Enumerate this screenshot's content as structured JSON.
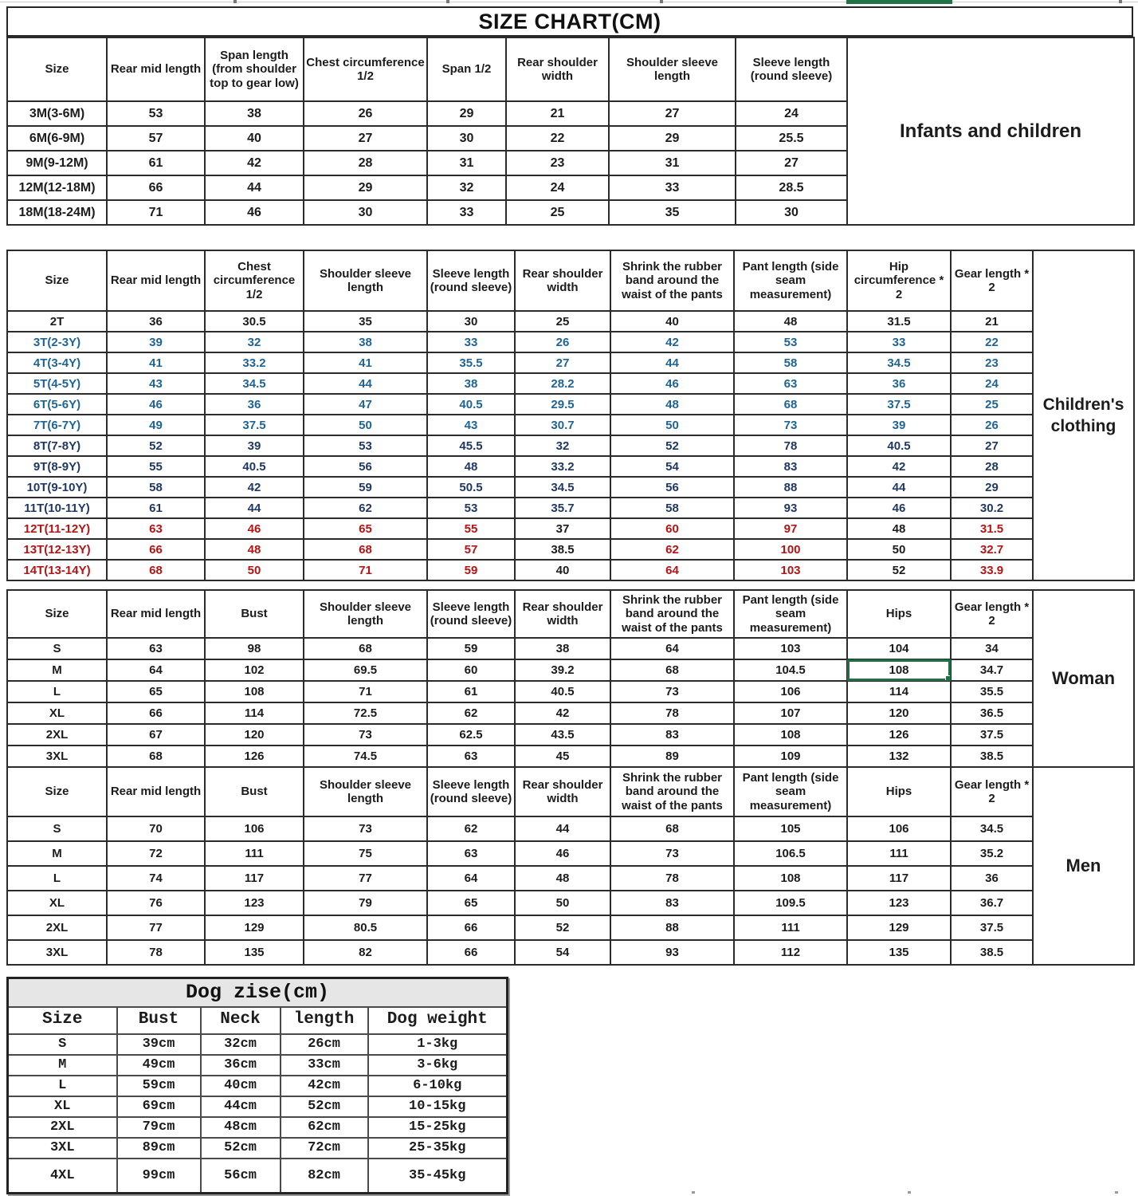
{
  "title": "SIZE CHART(CM)",
  "colors": {
    "black_text": "#1c1c1c",
    "blue_text": "#1f6494",
    "navy_text": "#1f3864",
    "red_text": "#b41414",
    "label_red": "#cb1111",
    "selection_green": "#217346",
    "dog_header_bg": "#e6e6e6"
  },
  "tables": [
    {
      "id": "t1",
      "label": "Infants and children",
      "header": [
        "Size",
        "Rear mid length",
        "Span length (from shoulder top to gear low)",
        "Chest circumference 1/2",
        "Span 1/2",
        "Rear shoulder width",
        "Shoulder sleeve length",
        "Sleeve length (round sleeve)"
      ],
      "rows": [
        [
          "3M(3-6M)",
          "53",
          "38",
          "26",
          "29",
          "21",
          "27",
          "24"
        ],
        [
          "6M(6-9M)",
          "57",
          "40",
          "27",
          "30",
          "22",
          "29",
          "25.5"
        ],
        [
          "9M(9-12M)",
          "61",
          "42",
          "28",
          "31",
          "23",
          "31",
          "27"
        ],
        [
          "12M(12-18M)",
          "66",
          "44",
          "29",
          "32",
          "24",
          "33",
          "28.5"
        ],
        [
          "18M(18-24M)",
          "71",
          "46",
          "30",
          "33",
          "25",
          "35",
          "30"
        ]
      ]
    },
    {
      "id": "t2",
      "label": "Children's clothing",
      "header": [
        "Size",
        "Rear mid length",
        "Chest circumference 1/2",
        "Shoulder sleeve length",
        "Sleeve length (round sleeve)",
        "Rear shoulder width",
        "Shrink the rubber band around the waist of the pants",
        "Pant length (side seam measurement)",
        "Hip circumference * 2",
        "Gear length * 2"
      ],
      "row_colors": [
        "k",
        "b",
        "b",
        "b",
        "b",
        "b",
        "n",
        "n",
        "n",
        "n",
        "r",
        "r",
        "r"
      ],
      "black_cols_in_red_rows": [
        5,
        8
      ],
      "rows": [
        [
          "2T",
          "36",
          "30.5",
          "35",
          "30",
          "25",
          "40",
          "48",
          "31.5",
          "21"
        ],
        [
          "3T(2-3Y)",
          "39",
          "32",
          "38",
          "33",
          "26",
          "42",
          "53",
          "33",
          "22"
        ],
        [
          "4T(3-4Y)",
          "41",
          "33.2",
          "41",
          "35.5",
          "27",
          "44",
          "58",
          "34.5",
          "23"
        ],
        [
          "5T(4-5Y)",
          "43",
          "34.5",
          "44",
          "38",
          "28.2",
          "46",
          "63",
          "36",
          "24"
        ],
        [
          "6T(5-6Y)",
          "46",
          "36",
          "47",
          "40.5",
          "29.5",
          "48",
          "68",
          "37.5",
          "25"
        ],
        [
          "7T(6-7Y)",
          "49",
          "37.5",
          "50",
          "43",
          "30.7",
          "50",
          "73",
          "39",
          "26"
        ],
        [
          "8T(7-8Y)",
          "52",
          "39",
          "53",
          "45.5",
          "32",
          "52",
          "78",
          "40.5",
          "27"
        ],
        [
          "9T(8-9Y)",
          "55",
          "40.5",
          "56",
          "48",
          "33.2",
          "54",
          "83",
          "42",
          "28"
        ],
        [
          "10T(9-10Y)",
          "58",
          "42",
          "59",
          "50.5",
          "34.5",
          "56",
          "88",
          "44",
          "29"
        ],
        [
          "11T(10-11Y)",
          "61",
          "44",
          "62",
          "53",
          "35.7",
          "58",
          "93",
          "46",
          "30.2"
        ],
        [
          "12T(11-12Y)",
          "63",
          "46",
          "65",
          "55",
          "37",
          "60",
          "97",
          "48",
          "31.5"
        ],
        [
          "13T(12-13Y)",
          "66",
          "48",
          "68",
          "57",
          "38.5",
          "62",
          "100",
          "50",
          "32.7"
        ],
        [
          "14T(13-14Y)",
          "68",
          "50",
          "71",
          "59",
          "40",
          "64",
          "103",
          "52",
          "33.9"
        ]
      ]
    },
    {
      "id": "t3",
      "label": "Woman",
      "header": [
        "Size",
        "Rear mid length",
        "Bust",
        "Shoulder sleeve length",
        "Sleeve length (round sleeve)",
        "Rear shoulder width",
        "Shrink the rubber band around the waist of the pants",
        "Pant length (side seam measurement)",
        "Hips",
        "Gear length * 2"
      ],
      "selected": {
        "row": 1,
        "col": 8
      },
      "rows": [
        [
          "S",
          "63",
          "98",
          "68",
          "59",
          "38",
          "64",
          "103",
          "104",
          "34"
        ],
        [
          "M",
          "64",
          "102",
          "69.5",
          "60",
          "39.2",
          "68",
          "104.5",
          "108",
          "34.7"
        ],
        [
          "L",
          "65",
          "108",
          "71",
          "61",
          "40.5",
          "73",
          "106",
          "114",
          "35.5"
        ],
        [
          "XL",
          "66",
          "114",
          "72.5",
          "62",
          "42",
          "78",
          "107",
          "120",
          "36.5"
        ],
        [
          "2XL",
          "67",
          "120",
          "73",
          "62.5",
          "43.5",
          "83",
          "108",
          "126",
          "37.5"
        ],
        [
          "3XL",
          "68",
          "126",
          "74.5",
          "63",
          "45",
          "89",
          "109",
          "132",
          "38.5"
        ]
      ]
    },
    {
      "id": "t4",
      "label": "Men",
      "header": [
        "Size",
        "Rear mid length",
        "Bust",
        "Shoulder sleeve length",
        "Sleeve length (round sleeve)",
        "Rear shoulder width",
        "Shrink the rubber band around the waist of the pants",
        "Pant length (side seam measurement)",
        "Hips",
        "Gear length * 2"
      ],
      "rows": [
        [
          "S",
          "70",
          "106",
          "73",
          "62",
          "44",
          "68",
          "105",
          "106",
          "34.5"
        ],
        [
          "M",
          "72",
          "111",
          "75",
          "63",
          "46",
          "73",
          "106.5",
          "111",
          "35.2"
        ],
        [
          "L",
          "74",
          "117",
          "77",
          "64",
          "48",
          "78",
          "108",
          "117",
          "36"
        ],
        [
          "XL",
          "76",
          "123",
          "79",
          "65",
          "50",
          "83",
          "109.5",
          "123",
          "36.7"
        ],
        [
          "2XL",
          "77",
          "129",
          "80.5",
          "66",
          "52",
          "88",
          "111",
          "129",
          "37.5"
        ],
        [
          "3XL",
          "78",
          "135",
          "82",
          "66",
          "54",
          "93",
          "112",
          "135",
          "38.5"
        ]
      ]
    },
    {
      "id": "dog",
      "title": "Dog zise(cm)",
      "header": [
        "Size",
        "Bust",
        "Neck",
        "length",
        "Dog weight"
      ],
      "rows": [
        [
          "S",
          "39cm",
          "32cm",
          "26cm",
          "1-3kg"
        ],
        [
          "M",
          "49cm",
          "36cm",
          "33cm",
          "3-6kg"
        ],
        [
          "L",
          "59cm",
          "40cm",
          "42cm",
          "6-10kg"
        ],
        [
          "XL",
          "69cm",
          "44cm",
          "52cm",
          "10-15kg"
        ],
        [
          "2XL",
          "79cm",
          "48cm",
          "62cm",
          "15-25kg"
        ],
        [
          "3XL",
          "89cm",
          "52cm",
          "72cm",
          "25-35kg"
        ],
        [
          "4XL",
          "99cm",
          "56cm",
          "82cm",
          "35-45kg"
        ]
      ]
    }
  ]
}
